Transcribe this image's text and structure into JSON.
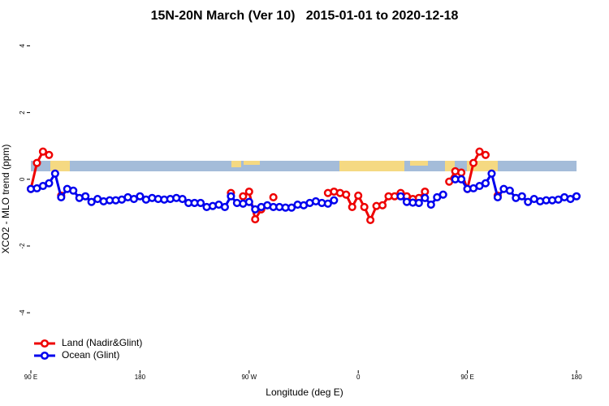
{
  "chart_data": {
    "type": "line",
    "title": "15N-20N March (Ver 10)   2015-01-01 to 2020-12-18",
    "x_label": "Longitude (deg E)",
    "y_label": "XCO2 - MLO trend (ppm)",
    "xlim": [
      90,
      540
    ],
    "ylim": [
      -5.7,
      4.4
    ],
    "xticks": [
      {
        "value": 90,
        "label": "90 E"
      },
      180,
      {
        "value": 270,
        "label": "90 W"
      },
      {
        "value": 360,
        "label": "0"
      },
      {
        "value": 450,
        "label": "90 E"
      },
      {
        "value": 540,
        "label": "180"
      }
    ],
    "yticks": [
      -4,
      -2,
      0,
      2,
      4
    ],
    "legend": "bottom-left",
    "x": [
      90,
      95,
      100,
      105,
      110,
      115,
      120,
      125,
      130,
      135,
      140,
      145,
      150,
      155,
      160,
      165,
      170,
      175,
      180,
      185,
      190,
      195,
      200,
      205,
      210,
      215,
      220,
      225,
      230,
      235,
      240,
      245,
      250,
      255,
      260,
      265,
      270,
      275,
      280,
      285,
      290,
      295,
      300,
      305,
      310,
      315,
      320,
      325,
      330,
      335,
      340,
      345,
      350,
      355,
      360,
      365,
      370,
      375,
      380,
      385,
      390,
      395,
      400,
      405,
      410,
      415,
      420,
      425,
      430,
      435,
      440,
      445,
      450,
      455,
      460,
      465,
      470,
      475,
      480,
      485,
      490,
      495,
      500,
      505,
      510,
      515,
      520,
      525,
      530,
      535,
      540
    ],
    "series": [
      {
        "name": "Land (Nadir&Glint)",
        "color": "#ee0000",
        "values": [
          -0.29,
          0.49,
          0.83,
          0.73,
          null,
          -0.49,
          null,
          null,
          null,
          null,
          null,
          null,
          null,
          null,
          null,
          null,
          null,
          null,
          null,
          null,
          null,
          null,
          null,
          null,
          null,
          null,
          null,
          null,
          null,
          null,
          null,
          null,
          null,
          -0.41,
          null,
          -0.51,
          -0.37,
          -1.2,
          -0.9,
          null,
          -0.54,
          null,
          null,
          null,
          null,
          null,
          null,
          null,
          null,
          -0.41,
          -0.37,
          -0.41,
          -0.46,
          -0.83,
          -0.49,
          -0.83,
          -1.22,
          -0.8,
          -0.78,
          -0.51,
          -0.51,
          -0.41,
          -0.51,
          -0.59,
          -0.56,
          -0.37,
          null,
          null,
          null,
          -0.07,
          0.24,
          0.2,
          -0.29,
          0.49,
          0.83,
          0.73,
          null,
          -0.49,
          null,
          null,
          null,
          null,
          null,
          null,
          null,
          null,
          null,
          null,
          null,
          null,
          null
        ]
      },
      {
        "name": "Ocean (Glint)",
        "color": "#0000ee",
        "values": [
          -0.29,
          -0.27,
          -0.2,
          -0.12,
          0.17,
          -0.54,
          -0.29,
          -0.34,
          -0.56,
          -0.51,
          -0.68,
          -0.59,
          -0.66,
          -0.63,
          -0.63,
          -0.61,
          -0.54,
          -0.59,
          -0.51,
          -0.61,
          -0.56,
          -0.59,
          -0.61,
          -0.59,
          -0.56,
          -0.59,
          -0.71,
          -0.71,
          -0.71,
          -0.83,
          -0.8,
          -0.76,
          -0.83,
          -0.51,
          -0.71,
          -0.73,
          -0.68,
          -0.9,
          -0.83,
          -0.78,
          -0.83,
          -0.83,
          -0.85,
          -0.85,
          -0.76,
          -0.78,
          -0.71,
          -0.66,
          -0.71,
          -0.73,
          -0.63,
          null,
          null,
          null,
          null,
          null,
          null,
          null,
          null,
          null,
          null,
          -0.51,
          -0.68,
          -0.7,
          -0.71,
          -0.56,
          -0.76,
          -0.54,
          -0.46,
          null,
          0,
          0,
          -0.29,
          -0.27,
          -0.2,
          -0.12,
          0.17,
          -0.54,
          -0.29,
          -0.34,
          -0.56,
          -0.51,
          -0.68,
          -0.59,
          -0.66,
          -0.63,
          -0.63,
          -0.61,
          -0.54,
          -0.59,
          -0.51
        ]
      }
    ]
  }
}
